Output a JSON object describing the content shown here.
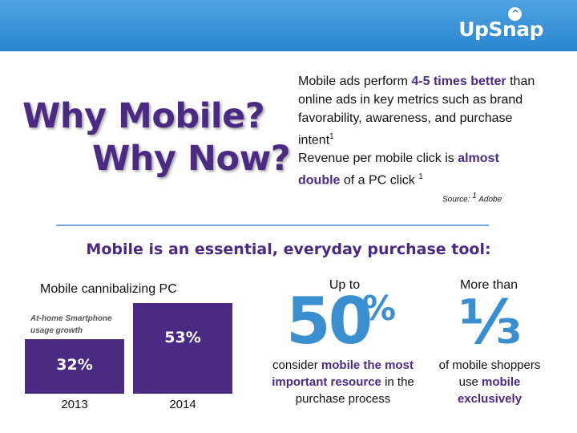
{
  "header": {
    "logo_text": "UpSnap",
    "logo_mark": "^"
  },
  "headline": {
    "line1": "Why Mobile?",
    "line2": "Why Now?"
  },
  "stats": {
    "p1_before": "Mobile ads perform ",
    "p1_highlight": "4-5 times better",
    "p1_after": " than online ads in key metrics such as brand favorability, awareness, and purchase intent",
    "p1_sup": "1",
    "p2_before": "Revenue per mobile click is ",
    "p2_highlight": "almost double",
    "p2_after": " of a PC click ",
    "p2_sup": "1",
    "source_label": "Source: ",
    "source_sup": "1",
    "source_name": " Adobe"
  },
  "subhead": "Mobile is an essential, everyday purchase tool:",
  "chart_data": {
    "type": "bar",
    "title": "Mobile cannibalizing PC",
    "annotation": "At-home Smartphone usage growth",
    "categories": [
      "2013",
      "2014"
    ],
    "values": [
      32,
      53
    ],
    "value_labels": [
      "32%",
      "53%"
    ],
    "bar_color": "#4b2a83",
    "ylim": [
      0,
      60
    ]
  },
  "stat50": {
    "prefix": "Up to",
    "number": "50",
    "unit": "%",
    "before": "consider ",
    "highlight": "mobile the most important resource",
    "after": " in the purchase process"
  },
  "stat_third": {
    "prefix": "More than",
    "number": "⅓",
    "before": "of mobile shoppers use ",
    "highlight": "mobile exclusively"
  },
  "colors": {
    "accent_purple": "#4b2a83",
    "accent_blue": "#3a8fd0",
    "header_blue": "#2b86cf"
  }
}
